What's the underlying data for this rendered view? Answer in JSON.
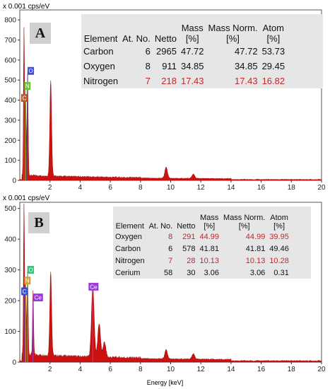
{
  "panels": [
    {
      "label": "A",
      "y_unit": "x 0.001 cps/eV",
      "table": {
        "headers": [
          "Element",
          "At. No.",
          "Netto",
          "Mass\n[%]",
          "Mass Norm.\n[%]",
          "Atom\n[%]"
        ],
        "rows": [
          {
            "element": "Carbon",
            "at_no": "6",
            "netto": "2965",
            "mass": "47.72",
            "mass_norm": "47.72",
            "atom": "53.73",
            "highlight": false
          },
          {
            "element": "Oxygen",
            "at_no": "8",
            "netto": "911",
            "mass": "34.85",
            "mass_norm": "34.85",
            "atom": "29.45",
            "highlight": false
          },
          {
            "element": "Nitrogen",
            "at_no": "7",
            "netto": "218",
            "mass": "17.43",
            "mass_norm": "17.43",
            "atom": "16.82",
            "highlight": true
          }
        ]
      },
      "markers": [
        {
          "text": "O",
          "color": "#3a4fd8"
        },
        {
          "text": "N",
          "color": "#6ac23a"
        },
        {
          "text": "C",
          "color": "#c05a2a"
        }
      ]
    },
    {
      "label": "B",
      "y_unit": "x 0.001 cps/eV",
      "x_label": "Energy [keV]",
      "table": {
        "headers": [
          "Element",
          "At. No.",
          "Netto",
          "Mass\n[%]",
          "Mass Norm.\n[%]",
          "Atom\n[%]"
        ],
        "rows": [
          {
            "element": "Oxygen",
            "at_no": "8",
            "netto": "291",
            "mass": "44.99",
            "mass_norm": "44.99",
            "atom": "39.95",
            "highlight": true
          },
          {
            "element": "Carbon",
            "at_no": "6",
            "netto": "578",
            "mass": "41.81",
            "mass_norm": "41.81",
            "atom": "49.46",
            "highlight": false
          },
          {
            "element": "Nitrogen",
            "at_no": "7",
            "netto": "28",
            "mass": "10.13",
            "mass_norm": "10.13",
            "atom": "10.28",
            "highlight": true
          },
          {
            "element": "Cerium",
            "at_no": "58",
            "netto": "30",
            "mass": "3.06",
            "mass_norm": "3.06",
            "atom": "0.31",
            "highlight": false
          }
        ]
      },
      "markers": [
        {
          "text": "O",
          "color": "#3ac47a"
        },
        {
          "text": "N",
          "color": "#d8a030"
        },
        {
          "text": "C",
          "color": "#3a4fd8"
        },
        {
          "text": "Ce",
          "color": "#9b3ad8"
        },
        {
          "text": "Ce",
          "color": "#9b3ad8"
        }
      ]
    }
  ],
  "chart_data": [
    {
      "type": "area",
      "xlim": [
        0,
        20
      ],
      "ylim": [
        0,
        850
      ],
      "x_ticks": [
        2,
        4,
        6,
        8,
        10,
        12,
        14,
        16,
        18,
        20
      ],
      "y_ticks": [
        0,
        100,
        200,
        300,
        400,
        500,
        600,
        700,
        800
      ],
      "fill_color": "#cc1111",
      "peaks": [
        {
          "x": 0.28,
          "y": 740
        },
        {
          "x": 0.39,
          "y": 395
        },
        {
          "x": 0.52,
          "y": 530
        },
        {
          "x": 2.05,
          "y": 480
        },
        {
          "x": 9.7,
          "y": 55
        },
        {
          "x": 11.5,
          "y": 22
        }
      ]
    },
    {
      "type": "area",
      "xlim": [
        0,
        20
      ],
      "ylim": [
        0,
        520
      ],
      "x_ticks": [
        2,
        4,
        6,
        8,
        10,
        12,
        14,
        16,
        18,
        20
      ],
      "y_ticks": [
        0,
        100,
        200,
        300,
        400,
        500
      ],
      "fill_color": "#cc1111",
      "peaks": [
        {
          "x": 0.28,
          "y": 490
        },
        {
          "x": 0.39,
          "y": 245
        },
        {
          "x": 0.52,
          "y": 290
        },
        {
          "x": 0.88,
          "y": 210
        },
        {
          "x": 2.05,
          "y": 275
        },
        {
          "x": 4.84,
          "y": 230
        },
        {
          "x": 5.26,
          "y": 110
        },
        {
          "x": 5.61,
          "y": 50
        },
        {
          "x": 9.7,
          "y": 30
        },
        {
          "x": 11.5,
          "y": 18
        }
      ]
    }
  ]
}
